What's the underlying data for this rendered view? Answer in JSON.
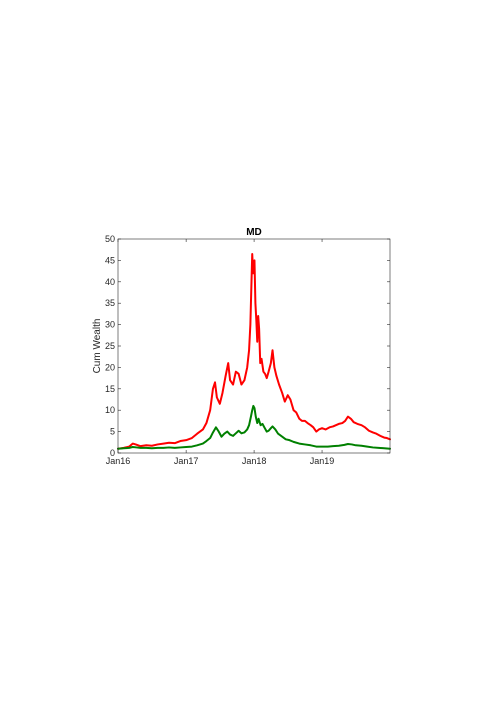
{
  "chart_data": {
    "type": "line",
    "title": "MD",
    "xlabel": "",
    "ylabel": "Cum Wealth",
    "x_tick_labels": [
      "Jan16",
      "Jan17",
      "Jan18",
      "Jan19"
    ],
    "x_tick_dates": [
      "2016-01-01",
      "2017-01-01",
      "2018-01-01",
      "2019-01-01"
    ],
    "xlim": [
      "2016-01-01",
      "2020-01-01"
    ],
    "ylim": [
      0,
      50
    ],
    "y_ticks": [
      0,
      5,
      10,
      15,
      20,
      25,
      30,
      35,
      40,
      45,
      50
    ],
    "grid": false,
    "legend": "none",
    "series": [
      {
        "color": "#ff0000",
        "points": [
          [
            "2016-01-01",
            1.0
          ],
          [
            "2016-02-01",
            1.2
          ],
          [
            "2016-03-01",
            1.5
          ],
          [
            "2016-03-20",
            2.2
          ],
          [
            "2016-04-05",
            2.0
          ],
          [
            "2016-05-01",
            1.6
          ],
          [
            "2016-06-01",
            1.8
          ],
          [
            "2016-07-01",
            1.7
          ],
          [
            "2016-08-01",
            2.0
          ],
          [
            "2016-09-01",
            2.2
          ],
          [
            "2016-10-01",
            2.4
          ],
          [
            "2016-11-01",
            2.3
          ],
          [
            "2016-12-01",
            2.8
          ],
          [
            "2017-01-01",
            3.0
          ],
          [
            "2017-02-01",
            3.5
          ],
          [
            "2017-03-01",
            4.5
          ],
          [
            "2017-04-01",
            5.5
          ],
          [
            "2017-04-20",
            7.0
          ],
          [
            "2017-05-10",
            10.0
          ],
          [
            "2017-05-25",
            15.0
          ],
          [
            "2017-06-05",
            16.5
          ],
          [
            "2017-06-15",
            13.0
          ],
          [
            "2017-07-01",
            11.5
          ],
          [
            "2017-07-15",
            14.0
          ],
          [
            "2017-08-01",
            18.0
          ],
          [
            "2017-08-15",
            21.0
          ],
          [
            "2017-08-25",
            17.0
          ],
          [
            "2017-09-10",
            16.0
          ],
          [
            "2017-09-25",
            19.0
          ],
          [
            "2017-10-10",
            18.5
          ],
          [
            "2017-10-25",
            16.0
          ],
          [
            "2017-11-10",
            17.0
          ],
          [
            "2017-11-25",
            20.0
          ],
          [
            "2017-12-05",
            24.0
          ],
          [
            "2017-12-12",
            30.0
          ],
          [
            "2017-12-18",
            40.0
          ],
          [
            "2017-12-22",
            46.5
          ],
          [
            "2017-12-27",
            42.0
          ],
          [
            "2018-01-03",
            45.0
          ],
          [
            "2018-01-08",
            35.0
          ],
          [
            "2018-01-13",
            31.0
          ],
          [
            "2018-01-18",
            26.0
          ],
          [
            "2018-01-23",
            32.0
          ],
          [
            "2018-01-28",
            29.0
          ],
          [
            "2018-02-03",
            21.0
          ],
          [
            "2018-02-10",
            22.0
          ],
          [
            "2018-02-20",
            19.0
          ],
          [
            "2018-03-01",
            18.5
          ],
          [
            "2018-03-10",
            17.5
          ],
          [
            "2018-03-20",
            19.0
          ],
          [
            "2018-04-01",
            21.0
          ],
          [
            "2018-04-10",
            24.0
          ],
          [
            "2018-04-20",
            20.0
          ],
          [
            "2018-05-01",
            18.0
          ],
          [
            "2018-05-15",
            16.0
          ],
          [
            "2018-06-01",
            14.0
          ],
          [
            "2018-06-15",
            12.0
          ],
          [
            "2018-07-01",
            13.5
          ],
          [
            "2018-07-15",
            12.5
          ],
          [
            "2018-08-01",
            10.0
          ],
          [
            "2018-08-15",
            9.5
          ],
          [
            "2018-09-01",
            8.0
          ],
          [
            "2018-09-15",
            7.5
          ],
          [
            "2018-10-01",
            7.5
          ],
          [
            "2018-10-15",
            7.0
          ],
          [
            "2018-11-01",
            6.5
          ],
          [
            "2018-11-15",
            6.0
          ],
          [
            "2018-12-01",
            5.0
          ],
          [
            "2018-12-15",
            5.5
          ],
          [
            "2019-01-01",
            5.8
          ],
          [
            "2019-01-20",
            5.5
          ],
          [
            "2019-02-10",
            6.0
          ],
          [
            "2019-03-01",
            6.2
          ],
          [
            "2019-04-01",
            6.8
          ],
          [
            "2019-04-20",
            7.0
          ],
          [
            "2019-05-05",
            7.5
          ],
          [
            "2019-05-20",
            8.5
          ],
          [
            "2019-06-05",
            8.0
          ],
          [
            "2019-06-20",
            7.2
          ],
          [
            "2019-07-10",
            6.8
          ],
          [
            "2019-08-01",
            6.5
          ],
          [
            "2019-08-20",
            6.0
          ],
          [
            "2019-09-10",
            5.2
          ],
          [
            "2019-10-01",
            4.8
          ],
          [
            "2019-10-20",
            4.5
          ],
          [
            "2019-11-10",
            4.0
          ],
          [
            "2019-12-01",
            3.6
          ],
          [
            "2019-12-15",
            3.5
          ],
          [
            "2020-01-01",
            3.2
          ]
        ]
      },
      {
        "color": "#008000",
        "points": [
          [
            "2016-01-01",
            1.0
          ],
          [
            "2016-02-01",
            1.1
          ],
          [
            "2016-03-01",
            1.2
          ],
          [
            "2016-03-20",
            1.4
          ],
          [
            "2016-04-10",
            1.3
          ],
          [
            "2016-05-01",
            1.2
          ],
          [
            "2016-06-01",
            1.2
          ],
          [
            "2016-07-01",
            1.1
          ],
          [
            "2016-08-01",
            1.2
          ],
          [
            "2016-09-01",
            1.2
          ],
          [
            "2016-10-01",
            1.3
          ],
          [
            "2016-11-01",
            1.2
          ],
          [
            "2016-12-01",
            1.3
          ],
          [
            "2017-01-01",
            1.4
          ],
          [
            "2017-02-01",
            1.5
          ],
          [
            "2017-03-01",
            1.8
          ],
          [
            "2017-04-01",
            2.2
          ],
          [
            "2017-04-20",
            2.8
          ],
          [
            "2017-05-10",
            3.5
          ],
          [
            "2017-05-25",
            4.8
          ],
          [
            "2017-06-10",
            6.0
          ],
          [
            "2017-06-25",
            5.0
          ],
          [
            "2017-07-10",
            3.8
          ],
          [
            "2017-07-25",
            4.5
          ],
          [
            "2017-08-10",
            5.0
          ],
          [
            "2017-08-25",
            4.3
          ],
          [
            "2017-09-10",
            4.0
          ],
          [
            "2017-09-25",
            4.6
          ],
          [
            "2017-10-10",
            5.2
          ],
          [
            "2017-10-25",
            4.6
          ],
          [
            "2017-11-10",
            4.8
          ],
          [
            "2017-11-25",
            5.5
          ],
          [
            "2017-12-05",
            6.5
          ],
          [
            "2017-12-15",
            8.5
          ],
          [
            "2017-12-22",
            10.0
          ],
          [
            "2017-12-28",
            11.0
          ],
          [
            "2018-01-03",
            10.5
          ],
          [
            "2018-01-10",
            8.5
          ],
          [
            "2018-01-18",
            7.0
          ],
          [
            "2018-01-25",
            8.0
          ],
          [
            "2018-02-05",
            6.5
          ],
          [
            "2018-02-15",
            6.8
          ],
          [
            "2018-02-25",
            6.0
          ],
          [
            "2018-03-10",
            5.0
          ],
          [
            "2018-03-20",
            5.2
          ],
          [
            "2018-04-01",
            5.8
          ],
          [
            "2018-04-10",
            6.2
          ],
          [
            "2018-04-25",
            5.5
          ],
          [
            "2018-05-10",
            4.5
          ],
          [
            "2018-06-01",
            3.8
          ],
          [
            "2018-06-20",
            3.2
          ],
          [
            "2018-07-10",
            3.0
          ],
          [
            "2018-08-01",
            2.6
          ],
          [
            "2018-09-01",
            2.2
          ],
          [
            "2018-10-01",
            2.0
          ],
          [
            "2018-11-01",
            1.8
          ],
          [
            "2018-12-01",
            1.5
          ],
          [
            "2019-01-01",
            1.5
          ],
          [
            "2019-02-01",
            1.5
          ],
          [
            "2019-03-01",
            1.6
          ],
          [
            "2019-04-01",
            1.7
          ],
          [
            "2019-05-01",
            1.9
          ],
          [
            "2019-05-20",
            2.1
          ],
          [
            "2019-06-10",
            2.0
          ],
          [
            "2019-07-01",
            1.8
          ],
          [
            "2019-08-01",
            1.7
          ],
          [
            "2019-09-01",
            1.5
          ],
          [
            "2019-10-01",
            1.3
          ],
          [
            "2019-11-01",
            1.2
          ],
          [
            "2019-12-01",
            1.1
          ],
          [
            "2020-01-01",
            1.0
          ]
        ]
      }
    ]
  }
}
